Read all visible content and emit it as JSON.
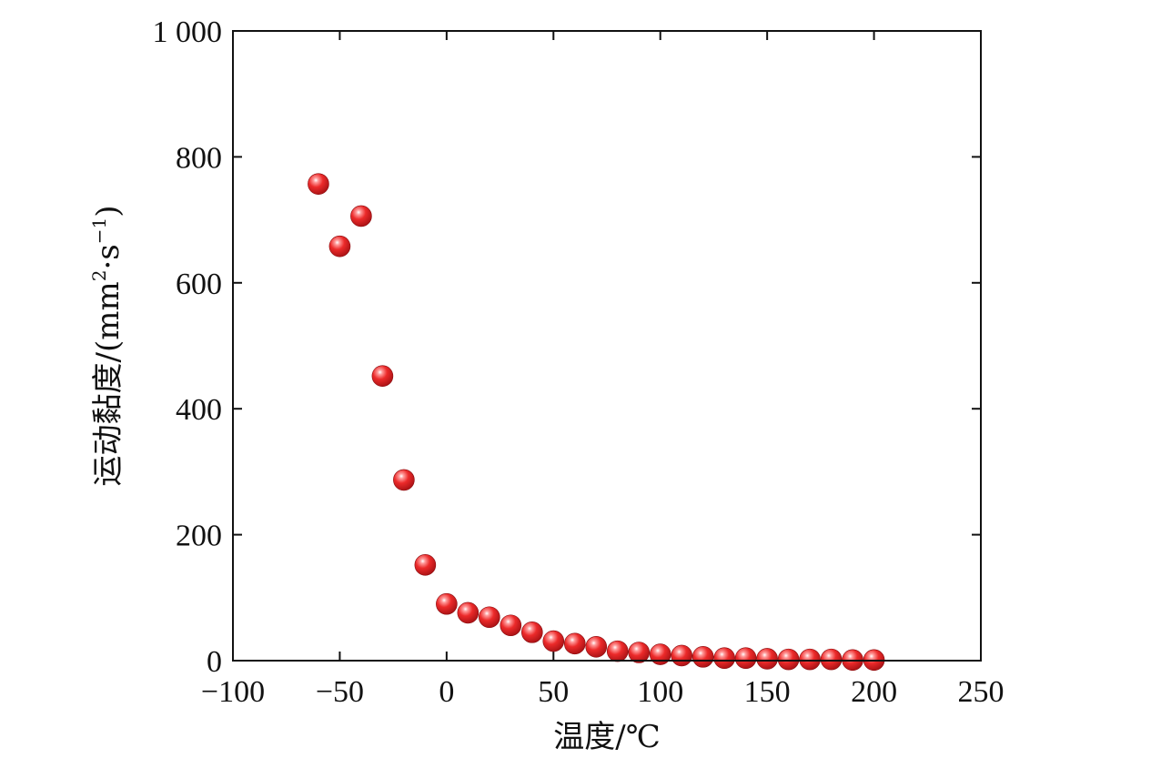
{
  "chart_data": {
    "type": "scatter",
    "title": "",
    "xlabel": "温度/℃",
    "ylabel_main": "运动黏度/(mm",
    "ylabel_sup1": "2",
    "ylabel_mid": "·s",
    "ylabel_sup2": "−1",
    "ylabel_end": ")",
    "xlim": [
      -100,
      250
    ],
    "ylim": [
      0,
      1000
    ],
    "xticks": [
      -100,
      -50,
      0,
      50,
      100,
      150,
      200,
      250
    ],
    "xtick_labels": [
      "−100",
      "−50",
      "0",
      "50",
      "100",
      "150",
      "200",
      "250"
    ],
    "yticks": [
      0,
      200,
      400,
      600,
      800,
      1000
    ],
    "ytick_labels": [
      "0",
      "200",
      "400",
      "600",
      "800",
      "1 000"
    ],
    "grid": false,
    "series": [
      {
        "marker_color": "#e8232a",
        "points": [
          {
            "x": -60,
            "y": 757
          },
          {
            "x": -50,
            "y": 658
          },
          {
            "x": -40,
            "y": 706
          },
          {
            "x": -30,
            "y": 452
          },
          {
            "x": -20,
            "y": 287
          },
          {
            "x": -10,
            "y": 152
          },
          {
            "x": 0,
            "y": 90
          },
          {
            "x": 10,
            "y": 76
          },
          {
            "x": 20,
            "y": 69
          },
          {
            "x": 30,
            "y": 56
          },
          {
            "x": 40,
            "y": 45
          },
          {
            "x": 50,
            "y": 31
          },
          {
            "x": 60,
            "y": 27
          },
          {
            "x": 70,
            "y": 22
          },
          {
            "x": 80,
            "y": 15
          },
          {
            "x": 90,
            "y": 13
          },
          {
            "x": 100,
            "y": 10
          },
          {
            "x": 110,
            "y": 8
          },
          {
            "x": 120,
            "y": 6
          },
          {
            "x": 130,
            "y": 4
          },
          {
            "x": 140,
            "y": 4
          },
          {
            "x": 150,
            "y": 3
          },
          {
            "x": 160,
            "y": 2
          },
          {
            "x": 170,
            "y": 2
          },
          {
            "x": 180,
            "y": 2
          },
          {
            "x": 190,
            "y": 1
          },
          {
            "x": 200,
            "y": 1
          }
        ]
      }
    ]
  }
}
